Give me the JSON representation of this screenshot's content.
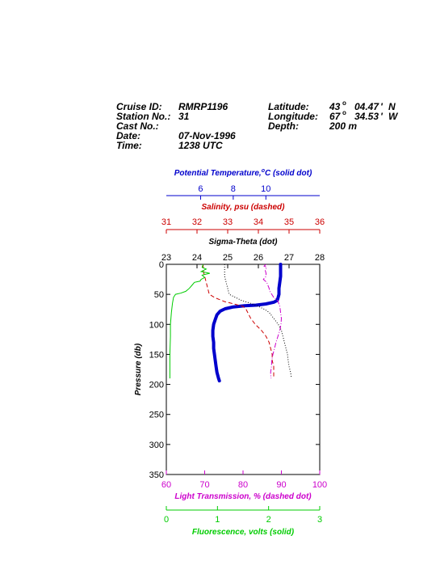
{
  "header": {
    "cruise_id_label": "Cruise ID:",
    "cruise_id": "RMRP1196",
    "station_label": "Station No.:",
    "station": "31",
    "cast_label": "Cast No.:",
    "cast": "",
    "date_label": "Date:",
    "date": "07-Nov-1996",
    "time_label": "Time:",
    "time": "1238 UTC",
    "latitude_label": "Latitude:",
    "latitude_deg": "43",
    "latitude_min": "04.47",
    "latitude_hemi": "N",
    "longitude_label": "Longitude:",
    "longitude_deg": "67",
    "longitude_min": "34.53",
    "longitude_hemi": "W",
    "depth_label": "Depth:",
    "depth": "200 m"
  },
  "colors": {
    "temperature": "#0000cc",
    "salinity": "#cc0000",
    "sigma": "#000000",
    "transmission": "#cc00cc",
    "fluorescence": "#00cc00"
  },
  "chart_data": {
    "type": "line",
    "y": {
      "label": "Pressure (db)",
      "range": [
        0,
        350
      ],
      "ticks": [
        0,
        50,
        100,
        150,
        200,
        250,
        300,
        350
      ],
      "inverted": true
    },
    "axes": [
      {
        "key": "temperature",
        "label": "Potential Temperature,",
        "label_unit_sup": "o",
        "label_unit": "C (solid dot)",
        "range": [
          3.9,
          13.3
        ],
        "ticks": [
          6,
          8,
          10
        ],
        "position": "top"
      },
      {
        "key": "salinity",
        "label": "Salinity, psu  (dashed)",
        "range": [
          31,
          36
        ],
        "ticks": [
          31,
          32,
          33,
          34,
          35,
          36
        ],
        "position": "top"
      },
      {
        "key": "sigma",
        "label": "Sigma-Theta (dot)",
        "range": [
          23,
          28
        ],
        "ticks": [
          23,
          24,
          25,
          26,
          27,
          28
        ],
        "position": "top"
      },
      {
        "key": "transmission",
        "label": "Light Transmission, % (dashed dot)",
        "range": [
          60,
          100
        ],
        "ticks": [
          60,
          70,
          80,
          90,
          100
        ],
        "position": "bottom"
      },
      {
        "key": "fluorescence",
        "label": "Fluorescence, volts (solid)",
        "range": [
          0,
          3
        ],
        "ticks": [
          0,
          1,
          2,
          3
        ],
        "position": "bottom"
      }
    ],
    "series": [
      {
        "axis": "temperature",
        "style": "thick",
        "values": [
          [
            10.9,
            0
          ],
          [
            10.9,
            10
          ],
          [
            10.9,
            20
          ],
          [
            10.85,
            30
          ],
          [
            10.8,
            40
          ],
          [
            10.8,
            50
          ],
          [
            10.75,
            55
          ],
          [
            10.7,
            60
          ],
          [
            10.5,
            63
          ],
          [
            10.0,
            66
          ],
          [
            9.4,
            68
          ],
          [
            8.7,
            69
          ],
          [
            8.0,
            71
          ],
          [
            7.5,
            74
          ],
          [
            7.2,
            78
          ],
          [
            7.0,
            84
          ],
          [
            6.9,
            92
          ],
          [
            6.8,
            100
          ],
          [
            6.75,
            110
          ],
          [
            6.75,
            120
          ],
          [
            6.8,
            130
          ],
          [
            6.8,
            140
          ],
          [
            6.85,
            150
          ],
          [
            6.9,
            160
          ],
          [
            6.95,
            170
          ],
          [
            7.0,
            180
          ],
          [
            7.1,
            190
          ],
          [
            7.15,
            194
          ]
        ]
      },
      {
        "axis": "salinity",
        "style": "dashed",
        "values": [
          [
            32.2,
            0
          ],
          [
            32.2,
            10
          ],
          [
            32.25,
            20
          ],
          [
            32.3,
            30
          ],
          [
            32.35,
            40
          ],
          [
            32.4,
            50
          ],
          [
            32.6,
            56
          ],
          [
            32.9,
            62
          ],
          [
            33.2,
            66
          ],
          [
            33.5,
            70
          ],
          [
            33.6,
            75
          ],
          [
            33.65,
            80
          ],
          [
            33.75,
            90
          ],
          [
            33.9,
            100
          ],
          [
            34.1,
            110
          ],
          [
            34.25,
            120
          ],
          [
            34.35,
            130
          ],
          [
            34.4,
            140
          ],
          [
            34.45,
            150
          ],
          [
            34.45,
            160
          ],
          [
            34.5,
            170
          ],
          [
            34.5,
            180
          ],
          [
            34.5,
            190
          ]
        ]
      },
      {
        "axis": "sigma",
        "style": "dotted",
        "values": [
          [
            24.9,
            0
          ],
          [
            24.9,
            10
          ],
          [
            24.9,
            20
          ],
          [
            24.95,
            30
          ],
          [
            25.0,
            40
          ],
          [
            25.05,
            50
          ],
          [
            25.25,
            55
          ],
          [
            25.45,
            60
          ],
          [
            25.75,
            65
          ],
          [
            26.0,
            70
          ],
          [
            26.2,
            75
          ],
          [
            26.35,
            80
          ],
          [
            26.5,
            90
          ],
          [
            26.65,
            100
          ],
          [
            26.75,
            110
          ],
          [
            26.8,
            120
          ],
          [
            26.85,
            130
          ],
          [
            26.9,
            140
          ],
          [
            26.95,
            150
          ],
          [
            26.97,
            160
          ],
          [
            27.0,
            170
          ],
          [
            27.05,
            180
          ],
          [
            27.08,
            190
          ]
        ]
      },
      {
        "axis": "transmission",
        "style": "dashdot",
        "values": [
          [
            86.0,
            0
          ],
          [
            85.5,
            3
          ],
          [
            86.2,
            5
          ],
          [
            85.8,
            10
          ],
          [
            86.0,
            15
          ],
          [
            86.0,
            20
          ],
          [
            85.3,
            25
          ],
          [
            86.2,
            30
          ],
          [
            86.8,
            40
          ],
          [
            87.0,
            45
          ],
          [
            87.5,
            50
          ],
          [
            88.0,
            55
          ],
          [
            89.0,
            60
          ],
          [
            89.6,
            70
          ],
          [
            89.8,
            80
          ],
          [
            90.0,
            90
          ],
          [
            89.9,
            100
          ],
          [
            89.6,
            110
          ],
          [
            89.1,
            120
          ],
          [
            88.6,
            130
          ],
          [
            88.2,
            140
          ],
          [
            87.8,
            150
          ],
          [
            87.5,
            160
          ],
          [
            87.4,
            170
          ],
          [
            87.2,
            180
          ],
          [
            87.3,
            190
          ]
        ]
      },
      {
        "axis": "fluorescence",
        "style": "solid",
        "values": [
          [
            0.72,
            0
          ],
          [
            0.7,
            5
          ],
          [
            0.78,
            8
          ],
          [
            0.68,
            12
          ],
          [
            0.85,
            15
          ],
          [
            0.7,
            18
          ],
          [
            0.75,
            22
          ],
          [
            0.68,
            25
          ],
          [
            0.66,
            28
          ],
          [
            0.55,
            30
          ],
          [
            0.5,
            35
          ],
          [
            0.45,
            40
          ],
          [
            0.38,
            45
          ],
          [
            0.28,
            48
          ],
          [
            0.18,
            50
          ],
          [
            0.14,
            55
          ],
          [
            0.12,
            65
          ],
          [
            0.1,
            80
          ],
          [
            0.08,
            100
          ],
          [
            0.08,
            120
          ],
          [
            0.07,
            150
          ],
          [
            0.07,
            170
          ],
          [
            0.07,
            190
          ]
        ]
      }
    ]
  }
}
